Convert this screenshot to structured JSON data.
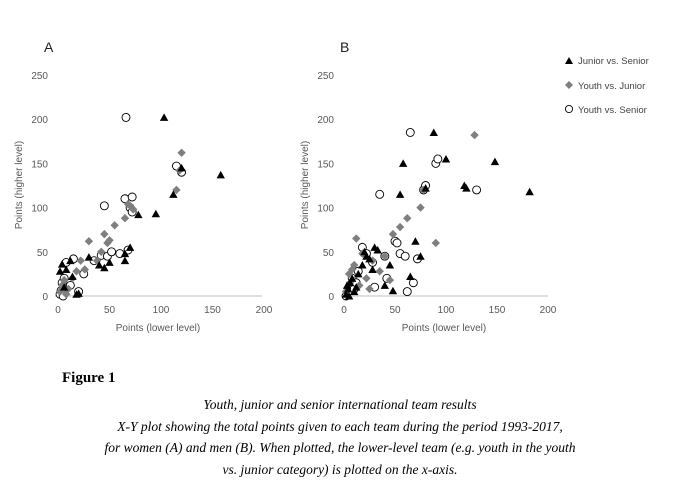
{
  "panels": [
    {
      "letter": "A",
      "xlabel": "Points (lower level)",
      "ylabel": "Points (higher level)",
      "xticks": [
        "0",
        "50",
        "100",
        "150",
        "200"
      ],
      "yticks": [
        "0",
        "50",
        "100",
        "150",
        "200",
        "250"
      ]
    },
    {
      "letter": "B",
      "xlabel": "Points (lower level)",
      "ylabel": "Points (higher level)",
      "xticks": [
        "0",
        "50",
        "100",
        "150",
        "200"
      ],
      "yticks": [
        "0",
        "50",
        "100",
        "150",
        "200",
        "250"
      ]
    }
  ],
  "legend": {
    "position": "top-right",
    "items": [
      "Junior vs. Senior",
      "Youth vs. Junior",
      "Youth vs. Senior"
    ]
  },
  "figure_label": "Figure 1",
  "caption": [
    "Youth, junior and senior international team results",
    "X-Y plot showing the total points given to each team during the period 1993-2017,",
    "for women (A) and men (B). When plotted, the lower-level team (e.g. youth in the youth",
    "vs. junior category) is plotted on the x-axis."
  ],
  "chart_data": [
    {
      "type": "scatter",
      "title": "A",
      "xlabel": "Points (lower level)",
      "ylabel": "Points (higher level)",
      "xlim": [
        0,
        200
      ],
      "ylim": [
        0,
        250
      ],
      "grid": false,
      "series": [
        {
          "name": "Junior vs. Senior",
          "marker": "triangle",
          "color": "#000000",
          "points": [
            [
              2,
              28
            ],
            [
              4,
              36
            ],
            [
              6,
              10
            ],
            [
              8,
              30
            ],
            [
              12,
              40
            ],
            [
              14,
              22
            ],
            [
              18,
              2
            ],
            [
              20,
              3
            ],
            [
              30,
              44
            ],
            [
              40,
              35
            ],
            [
              45,
              32
            ],
            [
              50,
              38
            ],
            [
              65,
              40
            ],
            [
              65,
              48
            ],
            [
              70,
              55
            ],
            [
              78,
              92
            ],
            [
              95,
              93
            ],
            [
              103,
              202
            ],
            [
              112,
              115
            ],
            [
              120,
              145
            ],
            [
              158,
              137
            ]
          ]
        },
        {
          "name": "Youth vs. Junior",
          "marker": "diamond",
          "color": "#7f7f7f",
          "points": [
            [
              2,
              5
            ],
            [
              4,
              12
            ],
            [
              6,
              18
            ],
            [
              8,
              2
            ],
            [
              10,
              8
            ],
            [
              14,
              20
            ],
            [
              18,
              28
            ],
            [
              22,
              40
            ],
            [
              26,
              30
            ],
            [
              30,
              62
            ],
            [
              38,
              40
            ],
            [
              42,
              50
            ],
            [
              45,
              70
            ],
            [
              48,
              60
            ],
            [
              50,
              63
            ],
            [
              55,
              80
            ],
            [
              65,
              88
            ],
            [
              68,
              104
            ],
            [
              70,
              102
            ],
            [
              73,
              98
            ],
            [
              115,
              120
            ],
            [
              118,
              142
            ],
            [
              120,
              162
            ]
          ]
        },
        {
          "name": "Youth vs. Senior",
          "marker": "circle",
          "color": "#000000",
          "points": [
            [
              2,
              2
            ],
            [
              3,
              6
            ],
            [
              4,
              15
            ],
            [
              5,
              0
            ],
            [
              6,
              20
            ],
            [
              8,
              38
            ],
            [
              12,
              12
            ],
            [
              15,
              42
            ],
            [
              20,
              5
            ],
            [
              25,
              25
            ],
            [
              35,
              40
            ],
            [
              42,
              46
            ],
            [
              45,
              102
            ],
            [
              48,
              45
            ],
            [
              52,
              50
            ],
            [
              60,
              48
            ],
            [
              65,
              110
            ],
            [
              66,
              202
            ],
            [
              68,
              52
            ],
            [
              70,
              100
            ],
            [
              72,
              112
            ],
            [
              72,
              95
            ],
            [
              115,
              147
            ],
            [
              120,
              140
            ]
          ]
        }
      ]
    },
    {
      "type": "scatter",
      "title": "B",
      "xlabel": "Points (lower level)",
      "ylabel": "Points (higher level)",
      "xlim": [
        0,
        200
      ],
      "ylim": [
        0,
        250
      ],
      "grid": false,
      "series": [
        {
          "name": "Junior vs. Senior",
          "marker": "triangle",
          "color": "#000000",
          "points": [
            [
              2,
              2
            ],
            [
              3,
              12
            ],
            [
              4,
              8
            ],
            [
              5,
              0
            ],
            [
              6,
              15
            ],
            [
              8,
              20
            ],
            [
              10,
              5
            ],
            [
              12,
              10
            ],
            [
              14,
              25
            ],
            [
              18,
              35
            ],
            [
              20,
              50
            ],
            [
              22,
              45
            ],
            [
              25,
              42
            ],
            [
              28,
              30
            ],
            [
              30,
              55
            ],
            [
              33,
              52
            ],
            [
              40,
              12
            ],
            [
              45,
              35
            ],
            [
              48,
              6
            ],
            [
              55,
              115
            ],
            [
              58,
              150
            ],
            [
              65,
              22
            ],
            [
              70,
              62
            ],
            [
              75,
              45
            ],
            [
              80,
              122
            ],
            [
              88,
              185
            ],
            [
              100,
              155
            ],
            [
              118,
              125
            ],
            [
              120,
              122
            ],
            [
              148,
              152
            ],
            [
              182,
              118
            ]
          ]
        },
        {
          "name": "Youth vs. Junior",
          "marker": "diamond",
          "color": "#7f7f7f",
          "points": [
            [
              2,
              5
            ],
            [
              5,
              25
            ],
            [
              6,
              15
            ],
            [
              8,
              30
            ],
            [
              10,
              35
            ],
            [
              12,
              65
            ],
            [
              15,
              12
            ],
            [
              18,
              48
            ],
            [
              22,
              20
            ],
            [
              25,
              8
            ],
            [
              28,
              40
            ],
            [
              35,
              28
            ],
            [
              40,
              45
            ],
            [
              45,
              18
            ],
            [
              48,
              70
            ],
            [
              55,
              78
            ],
            [
              62,
              88
            ],
            [
              75,
              100
            ],
            [
              78,
              120
            ],
            [
              90,
              60
            ],
            [
              128,
              182
            ]
          ]
        },
        {
          "name": "Youth vs. Senior",
          "marker": "circle",
          "color": "#000000",
          "points": [
            [
              2,
              0
            ],
            [
              4,
              5
            ],
            [
              6,
              12
            ],
            [
              8,
              20
            ],
            [
              10,
              8
            ],
            [
              12,
              15
            ],
            [
              14,
              28
            ],
            [
              18,
              55
            ],
            [
              22,
              48
            ],
            [
              28,
              38
            ],
            [
              30,
              10
            ],
            [
              35,
              115
            ],
            [
              40,
              45
            ],
            [
              42,
              20
            ],
            [
              50,
              62
            ],
            [
              52,
              60
            ],
            [
              55,
              48
            ],
            [
              60,
              45
            ],
            [
              62,
              5
            ],
            [
              65,
              185
            ],
            [
              68,
              15
            ],
            [
              72,
              42
            ],
            [
              78,
              120
            ],
            [
              80,
              125
            ],
            [
              90,
              150
            ],
            [
              92,
              155
            ],
            [
              130,
              120
            ]
          ]
        }
      ]
    }
  ]
}
